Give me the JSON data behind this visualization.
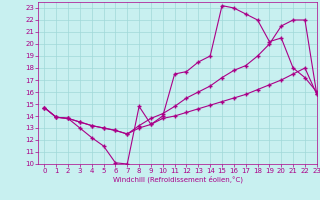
{
  "xlabel": "Windchill (Refroidissement éolien,°C)",
  "bg_color": "#c8f0f0",
  "line_color": "#aa0088",
  "grid_color": "#a0d8d8",
  "xlim": [
    -0.5,
    23
  ],
  "ylim": [
    10,
    23.5
  ],
  "yticks": [
    10,
    11,
    12,
    13,
    14,
    15,
    16,
    17,
    18,
    19,
    20,
    21,
    22,
    23
  ],
  "xticks": [
    0,
    1,
    2,
    3,
    4,
    5,
    6,
    7,
    8,
    9,
    10,
    11,
    12,
    13,
    14,
    15,
    16,
    17,
    18,
    19,
    20,
    21,
    22,
    23
  ],
  "line1_x": [
    0,
    1,
    2,
    3,
    4,
    5,
    6,
    7,
    8,
    9,
    10,
    11,
    12,
    13,
    14,
    15,
    16,
    17,
    18,
    19,
    20,
    21,
    22,
    23
  ],
  "line1_y": [
    14.7,
    13.9,
    13.8,
    13.0,
    12.2,
    11.5,
    10.1,
    10.0,
    14.8,
    13.3,
    14.0,
    17.5,
    17.7,
    18.5,
    19.0,
    23.2,
    23.0,
    22.5,
    22.0,
    20.2,
    20.5,
    18.0,
    17.2,
    16.0
  ],
  "line2_x": [
    0,
    1,
    2,
    3,
    4,
    5,
    6,
    7,
    8,
    9,
    10,
    11,
    12,
    13,
    14,
    15,
    16,
    17,
    18,
    19,
    20,
    21,
    22,
    23
  ],
  "line2_y": [
    14.7,
    13.9,
    13.8,
    13.5,
    13.2,
    13.0,
    12.8,
    12.5,
    13.2,
    13.8,
    14.2,
    14.8,
    15.5,
    16.0,
    16.5,
    17.2,
    17.8,
    18.2,
    19.0,
    20.0,
    21.5,
    22.0,
    22.0,
    15.8
  ],
  "line3_x": [
    0,
    1,
    2,
    3,
    4,
    5,
    6,
    7,
    8,
    9,
    10,
    11,
    12,
    13,
    14,
    15,
    16,
    17,
    18,
    19,
    20,
    21,
    22,
    23
  ],
  "line3_y": [
    14.7,
    13.9,
    13.8,
    13.5,
    13.2,
    13.0,
    12.8,
    12.5,
    13.0,
    13.3,
    13.8,
    14.0,
    14.3,
    14.6,
    14.9,
    15.2,
    15.5,
    15.8,
    16.2,
    16.6,
    17.0,
    17.5,
    18.0,
    15.8
  ],
  "marker": "+",
  "markersize": 3,
  "linewidth": 0.8,
  "tick_fontsize": 5,
  "xlabel_fontsize": 5
}
